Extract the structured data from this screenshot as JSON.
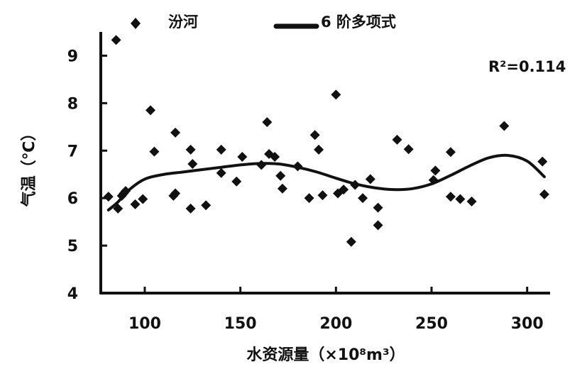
{
  "chart_data": {
    "type": "scatter",
    "xlabel": "水资源量（×10⁸m³）",
    "ylabel": "气温（℃）",
    "xlim": [
      77,
      312
    ],
    "ylim": [
      4,
      9.5
    ],
    "xticks": [
      100,
      150,
      200,
      250,
      300
    ],
    "yticks": [
      4,
      5,
      6,
      7,
      8,
      9
    ],
    "grid": false,
    "legend_position": "top",
    "legend": {
      "scatter_label": "汾河",
      "trend_label": "6 阶多项式"
    },
    "annotation": "R²=0.114",
    "series": [
      {
        "name": "汾河",
        "kind": "scatter",
        "points": [
          [
            81,
            6.03
          ],
          [
            85,
            9.33
          ],
          [
            86,
            5.78
          ],
          [
            88,
            6.05
          ],
          [
            89,
            6.1
          ],
          [
            90,
            6.15
          ],
          [
            95,
            5.87
          ],
          [
            99,
            5.98
          ],
          [
            103,
            7.85
          ],
          [
            105,
            6.98
          ],
          [
            115,
            6.05
          ],
          [
            116,
            6.1
          ],
          [
            116,
            7.38
          ],
          [
            124,
            5.78
          ],
          [
            124,
            7.02
          ],
          [
            125,
            6.72
          ],
          [
            132,
            5.85
          ],
          [
            140,
            7.02
          ],
          [
            140,
            6.53
          ],
          [
            148,
            6.35
          ],
          [
            151,
            6.87
          ],
          [
            161,
            6.7
          ],
          [
            164,
            7.6
          ],
          [
            165,
            6.93
          ],
          [
            168,
            6.87
          ],
          [
            171,
            6.47
          ],
          [
            172,
            6.2
          ],
          [
            180,
            6.67
          ],
          [
            186,
            6.0
          ],
          [
            189,
            7.33
          ],
          [
            191,
            7.02
          ],
          [
            193,
            6.06
          ],
          [
            200,
            8.18
          ],
          [
            201,
            6.1
          ],
          [
            204,
            6.18
          ],
          [
            208,
            5.08
          ],
          [
            210,
            6.28
          ],
          [
            214,
            6.0
          ],
          [
            218,
            6.4
          ],
          [
            222,
            5.43
          ],
          [
            222,
            5.8
          ],
          [
            232,
            7.23
          ],
          [
            238,
            7.03
          ],
          [
            251,
            6.38
          ],
          [
            252,
            6.58
          ],
          [
            260,
            6.97
          ],
          [
            260,
            6.03
          ],
          [
            265,
            5.98
          ],
          [
            271,
            5.93
          ],
          [
            288,
            7.52
          ],
          [
            308,
            6.77
          ],
          [
            309,
            6.08
          ]
        ]
      },
      {
        "name": "6 阶多项式",
        "kind": "line",
        "points": [
          [
            81,
            5.75
          ],
          [
            86,
            5.92
          ],
          [
            92,
            6.18
          ],
          [
            100,
            6.4
          ],
          [
            110,
            6.5
          ],
          [
            120,
            6.55
          ],
          [
            130,
            6.6
          ],
          [
            140,
            6.65
          ],
          [
            150,
            6.7
          ],
          [
            160,
            6.73
          ],
          [
            170,
            6.72
          ],
          [
            180,
            6.65
          ],
          [
            190,
            6.55
          ],
          [
            200,
            6.42
          ],
          [
            210,
            6.3
          ],
          [
            220,
            6.22
          ],
          [
            230,
            6.18
          ],
          [
            240,
            6.2
          ],
          [
            250,
            6.3
          ],
          [
            260,
            6.48
          ],
          [
            270,
            6.68
          ],
          [
            280,
            6.85
          ],
          [
            290,
            6.9
          ],
          [
            300,
            6.78
          ],
          [
            309,
            6.45
          ]
        ]
      }
    ]
  }
}
